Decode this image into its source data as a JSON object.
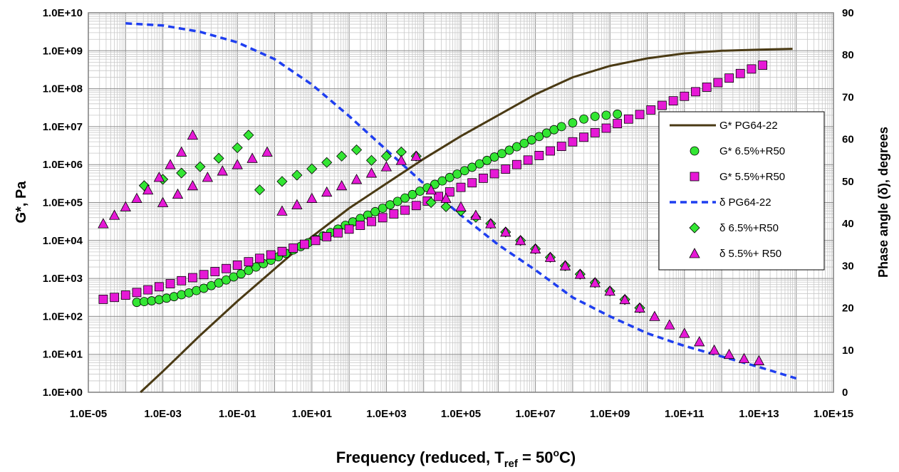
{
  "chart_data": {
    "type": "scatter",
    "xlabel": {
      "main": "Frequency (reduced, T",
      "sub": "ref",
      "tail": " = 50",
      "sup": "o",
      "end": "C)"
    },
    "ylabel": "G*, Pa",
    "y2label": "Phase angle (δ), degrees",
    "x_scale": "log",
    "y_scale": "log",
    "xlim": [
      1e-05,
      1000000000000000.0
    ],
    "ylim": [
      1,
      10000000000.0
    ],
    "y2lim": [
      0,
      90
    ],
    "x_ticks": [
      "1.0E-05",
      "1.0E-03",
      "1.0E-01",
      "1.0E+01",
      "1.0E+03",
      "1.0E+05",
      "1.0E+07",
      "1.0E+09",
      "1.0E+11",
      "1.0E+13",
      "1.0E+15"
    ],
    "y_ticks": [
      "1.0E+00",
      "1.0E+01",
      "1.0E+02",
      "1.0E+03",
      "1.0E+04",
      "1.0E+05",
      "1.0E+06",
      "1.0E+07",
      "1.0E+08",
      "1.0E+09",
      "1.0E+10"
    ],
    "y2_ticks": [
      "0",
      "10",
      "20",
      "30",
      "40",
      "50",
      "60",
      "70",
      "80",
      "90"
    ],
    "grid": true,
    "legend_position": "right",
    "legend": [
      {
        "label": "G* PG64-22",
        "marker": "line",
        "color": "#4a3a14"
      },
      {
        "label": "G* 6.5%+R50",
        "marker": "circle",
        "color": "#33e633"
      },
      {
        "label": "G* 5.5%+R50",
        "marker": "square",
        "color": "#e619d6"
      },
      {
        "label": "δ PG64-22",
        "marker": "dash",
        "color": "#1f3ff0"
      },
      {
        "label": "δ 6.5%+R50",
        "marker": "diamond",
        "color": "#33e633"
      },
      {
        "label": "δ 5.5%+ R50",
        "marker": "triangle",
        "color": "#e619d6"
      }
    ],
    "series": [
      {
        "name": "G* PG64-22",
        "axis": "left",
        "style": "line",
        "x_log10": [
          -3.6,
          -3,
          -2,
          -1,
          0,
          1,
          2,
          3,
          4,
          5,
          6,
          7,
          8,
          9,
          10,
          11,
          12,
          13,
          13.9
        ],
        "y_log10": [
          0,
          0.55,
          1.5,
          2.4,
          3.25,
          4.1,
          4.85,
          5.5,
          6.15,
          6.75,
          7.3,
          7.85,
          8.3,
          8.6,
          8.8,
          8.93,
          9.0,
          9.03,
          9.05
        ]
      },
      {
        "name": "δ PG64-22",
        "axis": "right",
        "style": "dash",
        "x_log10": [
          -4,
          -3,
          -2,
          -1,
          0,
          1,
          2,
          3,
          4,
          5,
          6,
          7,
          8,
          9,
          10,
          11,
          12,
          13,
          14
        ],
        "y": [
          87.5,
          87,
          85.5,
          83,
          79,
          73,
          65.5,
          57.5,
          49.5,
          42,
          35,
          29,
          22.5,
          18,
          14,
          11,
          8.5,
          6,
          3.3
        ]
      },
      {
        "name": "G* 6.5%+R50",
        "axis": "left",
        "style": "circle",
        "x_log10": [
          -3.7,
          -3.5,
          -3.3,
          -3.1,
          -2.9,
          -2.7,
          -2.5,
          -2.3,
          -2.1,
          -1.9,
          -1.7,
          -1.5,
          -1.3,
          -1.1,
          -0.9,
          -0.7,
          -0.5,
          -0.3,
          -0.1,
          0.1,
          0.3,
          0.5,
          0.7,
          0.9,
          1.1,
          1.3,
          1.5,
          1.7,
          1.9,
          2.1,
          2.3,
          2.5,
          2.7,
          2.9,
          3.1,
          3.3,
          3.5,
          3.7,
          3.9,
          4.1,
          4.3,
          4.5,
          4.7,
          4.9,
          5.1,
          5.3,
          5.5,
          5.7,
          5.9,
          6.1,
          6.3,
          6.5,
          6.7,
          6.9,
          7.1,
          7.3,
          7.5,
          7.7,
          8.0,
          8.3,
          8.6,
          8.9,
          9.2
        ],
        "y_log10": [
          2.37,
          2.39,
          2.41,
          2.44,
          2.48,
          2.52,
          2.57,
          2.62,
          2.68,
          2.74,
          2.81,
          2.88,
          2.96,
          3.04,
          3.12,
          3.21,
          3.3,
          3.39,
          3.48,
          3.57,
          3.66,
          3.75,
          3.84,
          3.94,
          4.03,
          4.12,
          4.21,
          4.3,
          4.4,
          4.49,
          4.58,
          4.67,
          4.76,
          4.85,
          4.94,
          5.03,
          5.12,
          5.21,
          5.3,
          5.39,
          5.48,
          5.57,
          5.66,
          5.75,
          5.84,
          5.93,
          6.02,
          6.11,
          6.2,
          6.29,
          6.38,
          6.47,
          6.56,
          6.65,
          6.74,
          6.83,
          6.92,
          7.0,
          7.1,
          7.2,
          7.27,
          7.3,
          7.33
        ]
      },
      {
        "name": "G* 5.5%+R50",
        "axis": "left",
        "style": "square",
        "x_log10": [
          -4.6,
          -4.3,
          -4.0,
          -3.7,
          -3.4,
          -3.1,
          -2.8,
          -2.5,
          -2.2,
          -1.9,
          -1.6,
          -1.3,
          -1.0,
          -0.7,
          -0.4,
          -0.1,
          0.2,
          0.5,
          0.8,
          1.1,
          1.4,
          1.7,
          2.0,
          2.3,
          2.6,
          2.9,
          3.2,
          3.5,
          3.8,
          4.1,
          4.4,
          4.7,
          5.0,
          5.3,
          5.6,
          5.9,
          6.2,
          6.5,
          6.8,
          7.1,
          7.4,
          7.7,
          8.0,
          8.3,
          8.6,
          8.9,
          9.2,
          9.5,
          9.8,
          10.1,
          10.4,
          10.7,
          11.0,
          11.3,
          11.6,
          11.9,
          12.2,
          12.5,
          12.8,
          13.1
        ],
        "y_log10": [
          2.45,
          2.5,
          2.56,
          2.63,
          2.7,
          2.78,
          2.86,
          2.94,
          3.02,
          3.1,
          3.18,
          3.26,
          3.35,
          3.44,
          3.53,
          3.62,
          3.71,
          3.8,
          3.9,
          4.0,
          4.1,
          4.2,
          4.3,
          4.4,
          4.5,
          4.6,
          4.7,
          4.8,
          4.92,
          5.04,
          5.16,
          5.28,
          5.4,
          5.52,
          5.64,
          5.76,
          5.88,
          6.0,
          6.12,
          6.24,
          6.36,
          6.48,
          6.6,
          6.72,
          6.84,
          6.96,
          7.08,
          7.2,
          7.32,
          7.44,
          7.56,
          7.68,
          7.8,
          7.92,
          8.04,
          8.16,
          8.28,
          8.4,
          8.52,
          8.62
        ]
      },
      {
        "name": "δ 6.5%+R50",
        "axis": "right",
        "style": "diamond",
        "x_log10": [
          -3.5,
          -3.0,
          -2.5,
          -2.0,
          -1.5,
          -1.0,
          -0.7,
          -0.4,
          0.2,
          0.6,
          1.0,
          1.4,
          1.8,
          2.2,
          2.6,
          3.0,
          3.4,
          3.8,
          4.2,
          4.6,
          5.0,
          5.4,
          5.8,
          6.2,
          6.6,
          7.0,
          7.4,
          7.8,
          8.2,
          8.6,
          9.0,
          9.4,
          9.8
        ],
        "y": [
          49,
          50.5,
          52,
          53.5,
          55.5,
          58,
          61,
          48,
          50,
          51.5,
          53,
          54.5,
          56,
          57.5,
          55,
          56,
          57,
          56,
          45,
          44,
          43,
          41.5,
          40,
          38,
          36,
          34,
          32,
          30,
          28,
          26,
          24,
          22,
          20
        ]
      },
      {
        "name": "δ 5.5%+ R50",
        "axis": "right",
        "style": "triangle",
        "x_log10": [
          -4.6,
          -4.3,
          -4.0,
          -3.7,
          -3.4,
          -3.1,
          -2.8,
          -2.5,
          -2.2,
          -3.0,
          -2.6,
          -2.2,
          -1.8,
          -1.4,
          -1.0,
          -0.6,
          -0.2,
          0.2,
          0.6,
          1.0,
          1.4,
          1.8,
          2.2,
          2.6,
          3.0,
          3.4,
          3.8,
          4.2,
          4.6,
          5.0,
          5.4,
          5.8,
          6.2,
          6.6,
          7.0,
          7.4,
          7.8,
          8.2,
          8.6,
          9.0,
          9.4,
          9.8,
          10.2,
          10.6,
          11.0,
          11.4,
          11.8,
          12.2,
          12.6,
          13.0
        ],
        "y": [
          40,
          42,
          44,
          46,
          48,
          51,
          54,
          57,
          61,
          45,
          47,
          49,
          51,
          52.5,
          54,
          55.5,
          57,
          43,
          44.5,
          46,
          47.5,
          49,
          50.5,
          52,
          53.5,
          55,
          56,
          48,
          46,
          44,
          42,
          40,
          38,
          36,
          34,
          32,
          30,
          28,
          26,
          24,
          22,
          20,
          18,
          16,
          14,
          12,
          10,
          9,
          8,
          7.5
        ]
      }
    ]
  }
}
